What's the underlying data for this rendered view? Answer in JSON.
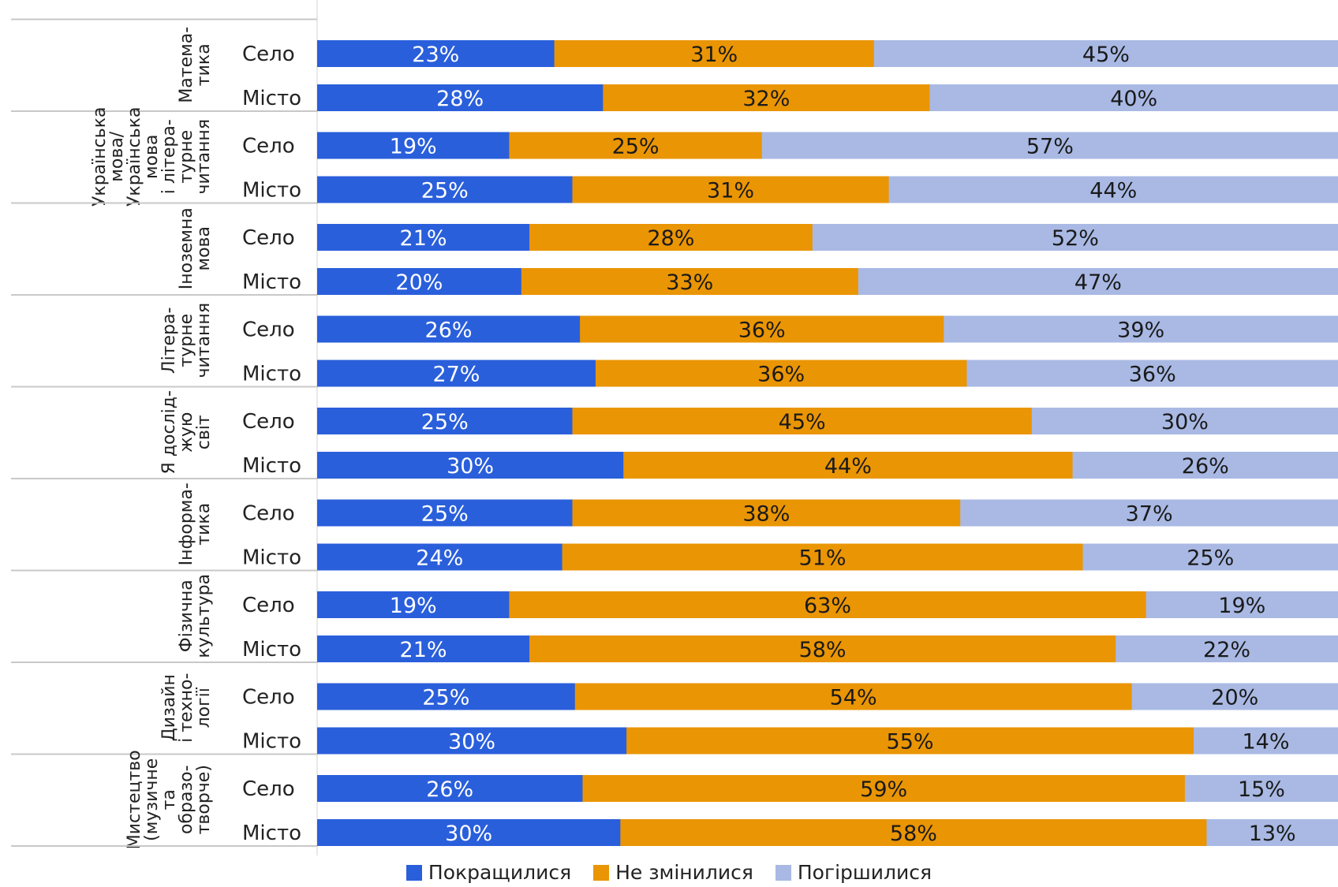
{
  "chart_data": {
    "type": "bar",
    "orientation": "horizontal",
    "stacked": true,
    "percent_axis": [
      0,
      100
    ],
    "colors": {
      "Покращилися": "#2a5fdb",
      "Не змінилися": "#ea9504",
      "Погіршилися": "#a9b9e4"
    },
    "legend": {
      "placement": "bottom",
      "items": [
        "Покращилися",
        "Не змінилися",
        "Погіршилися"
      ]
    },
    "groups": [
      {
        "label_lines": [
          "Матема-",
          "тика"
        ],
        "rows": [
          {
            "label": "Село",
            "values": [
              23,
              31,
              45
            ],
            "labels": [
              "23%",
              "31%",
              "45%"
            ]
          },
          {
            "label": "Місто",
            "values": [
              28,
              32,
              40
            ],
            "labels": [
              "28%",
              "32%",
              "40%"
            ]
          }
        ]
      },
      {
        "label_lines": [
          "Українська",
          "мова/",
          "Українська",
          "мова",
          "і літера-",
          "турне",
          "читання"
        ],
        "rows": [
          {
            "label": "Село",
            "values": [
              19,
              25,
              57
            ],
            "labels": [
              "19%",
              "25%",
              "57%"
            ]
          },
          {
            "label": "Місто",
            "values": [
              25,
              31,
              44
            ],
            "labels": [
              "25%",
              "31%",
              "44%"
            ]
          }
        ]
      },
      {
        "label_lines": [
          "Іноземна",
          "мова"
        ],
        "rows": [
          {
            "label": "Село",
            "values": [
              21,
              28,
              52
            ],
            "labels": [
              "21%",
              "28%",
              "52%"
            ]
          },
          {
            "label": "Місто",
            "values": [
              20,
              33,
              47
            ],
            "labels": [
              "20%",
              "33%",
              "47%"
            ]
          }
        ]
      },
      {
        "label_lines": [
          "Літера-",
          "турне",
          "читання"
        ],
        "rows": [
          {
            "label": "Село",
            "values": [
              26,
              36,
              39
            ],
            "labels": [
              "26%",
              "36%",
              "39%"
            ]
          },
          {
            "label": "Місто",
            "values": [
              27,
              36,
              36
            ],
            "labels": [
              "27%",
              "36%",
              "36%"
            ]
          }
        ]
      },
      {
        "label_lines": [
          "Я дослід-",
          "жую",
          "світ"
        ],
        "rows": [
          {
            "label": "Село",
            "values": [
              25,
              45,
              30
            ],
            "labels": [
              "25%",
              "45%",
              "30%"
            ]
          },
          {
            "label": "Місто",
            "values": [
              30,
              44,
              26
            ],
            "labels": [
              "30%",
              "44%",
              "26%"
            ]
          }
        ]
      },
      {
        "label_lines": [
          "Інформа-",
          "тика"
        ],
        "rows": [
          {
            "label": "Село",
            "values": [
              25,
              38,
              37
            ],
            "labels": [
              "25%",
              "38%",
              "37%"
            ]
          },
          {
            "label": "Місто",
            "values": [
              24,
              51,
              25
            ],
            "labels": [
              "24%",
              "51%",
              "25%"
            ]
          }
        ]
      },
      {
        "label_lines": [
          "Фізична",
          "культура"
        ],
        "rows": [
          {
            "label": "Село",
            "values": [
              19,
              63,
              19
            ],
            "labels": [
              "19%",
              "63%",
              "19%"
            ]
          },
          {
            "label": "Місто",
            "values": [
              21,
              58,
              22
            ],
            "labels": [
              "21%",
              "58%",
              "22%"
            ]
          }
        ]
      },
      {
        "label_lines": [
          "Дизайн",
          "і техно-",
          "логії"
        ],
        "rows": [
          {
            "label": "Село",
            "values": [
              25,
              54,
              20
            ],
            "labels": [
              "25%",
              "54%",
              "20%"
            ]
          },
          {
            "label": "Місто",
            "values": [
              30,
              55,
              14
            ],
            "labels": [
              "30%",
              "55%",
              "14%"
            ]
          }
        ]
      },
      {
        "label_lines": [
          "Мистецтво",
          "(музичне",
          "та",
          "образо-",
          "творче)"
        ],
        "rows": [
          {
            "label": "Село",
            "values": [
              26,
              59,
              15
            ],
            "labels": [
              "26%",
              "59%",
              "15%"
            ]
          },
          {
            "label": "Місто",
            "values": [
              30,
              58,
              13
            ],
            "labels": [
              "30%",
              "58%",
              "13%"
            ]
          }
        ]
      }
    ]
  }
}
